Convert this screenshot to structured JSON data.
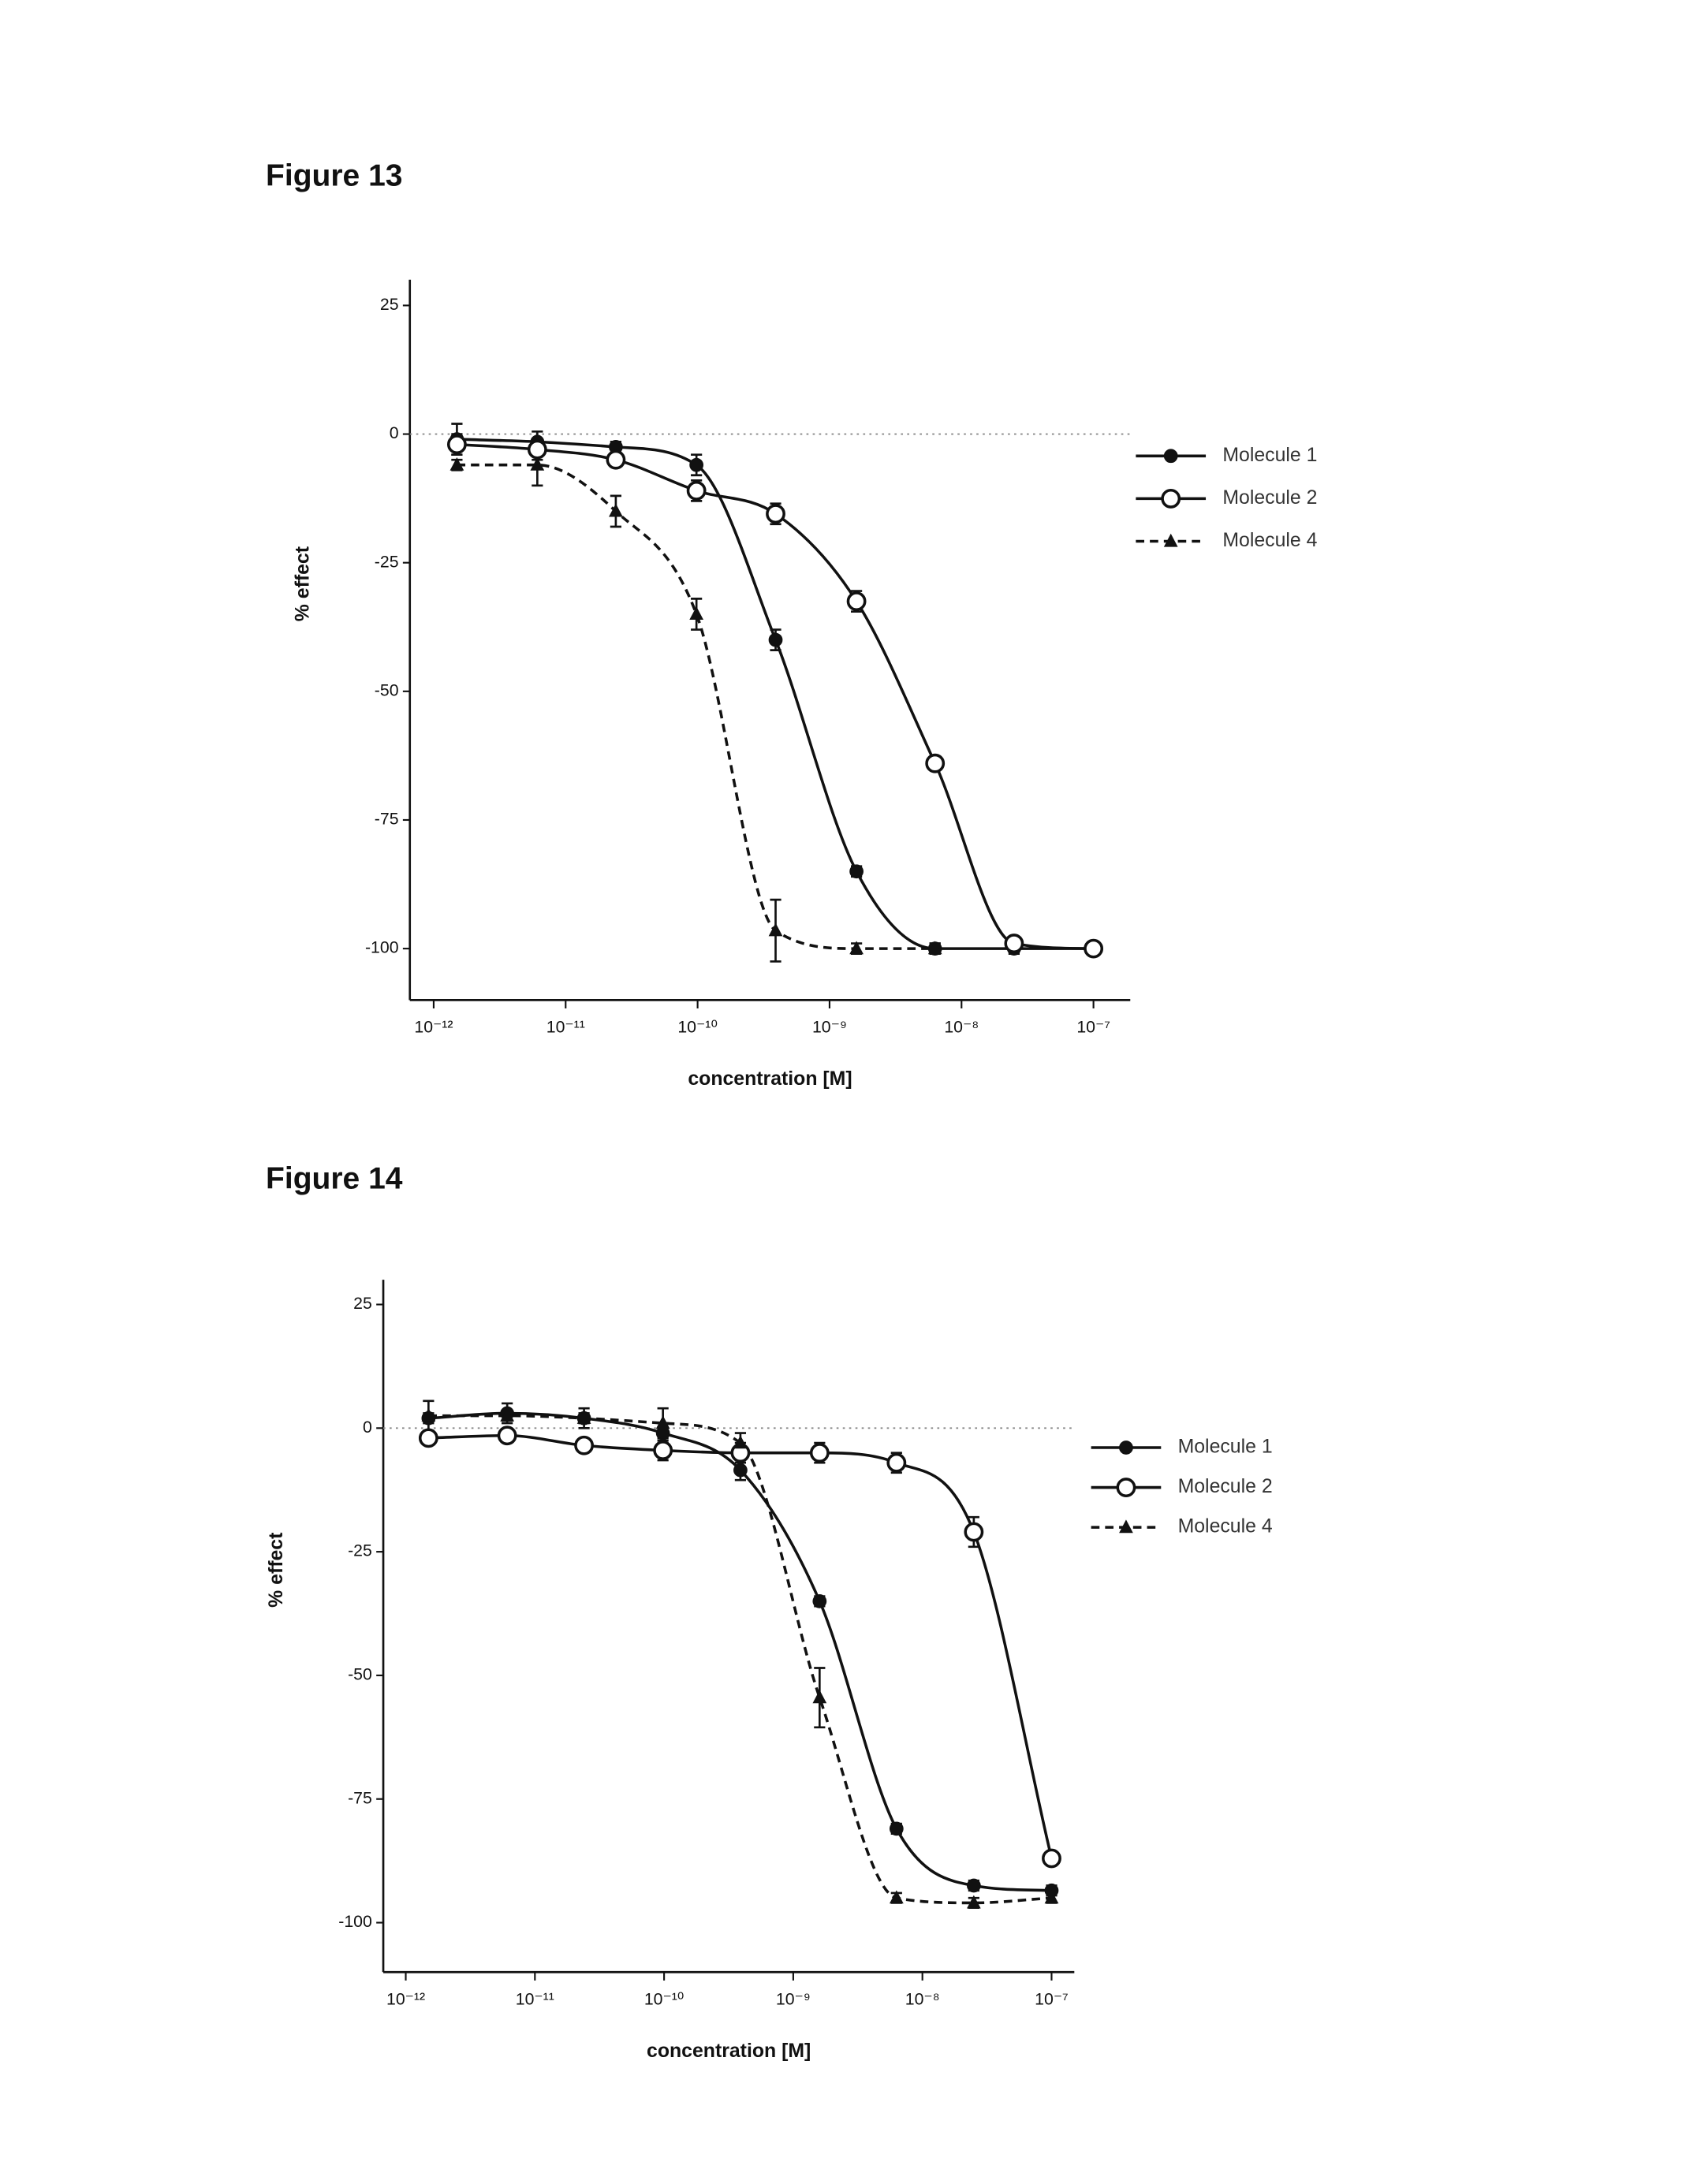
{
  "chart_data": [
    {
      "type": "scatter",
      "title": "Figure 13",
      "x_label": "concentration [M]",
      "y_label": "% effect",
      "x": [
        1.5e-12,
        6.1e-12,
        2.4e-11,
        9.8e-11,
        3.9e-10,
        1.6e-09,
        6.3e-09,
        2.5e-08,
        1e-07
      ],
      "xscale": "log",
      "xlim": [
        6.6e-13,
        1.9e-07
      ],
      "xticks": [
        {
          "value": 1e-12,
          "label": "10⁻¹²"
        },
        {
          "value": 1e-11,
          "label": "10⁻¹¹"
        },
        {
          "value": 1e-10,
          "label": "10⁻¹⁰"
        },
        {
          "value": 1e-09,
          "label": "10⁻⁹"
        },
        {
          "value": 1e-08,
          "label": "10⁻⁸"
        },
        {
          "value": 1e-07,
          "label": "10⁻⁷"
        }
      ],
      "ylim": [
        -110,
        30
      ],
      "yticks": [
        25,
        0,
        -25,
        -50,
        -75,
        -100
      ],
      "hline": 0,
      "legend": "right",
      "series": [
        {
          "name": "Molecule 1",
          "color": "#111111",
          "marker": "circle-filled",
          "line_style": "solid",
          "values": [
            -1,
            -1.5,
            -2.5,
            -6,
            -40,
            -85,
            -100,
            -100,
            -100
          ],
          "errors": [
            3,
            2,
            1,
            2,
            2,
            1,
            1,
            1,
            1
          ]
        },
        {
          "name": "Molecule 2",
          "color": "#111111",
          "marker": "circle-open",
          "line_style": "solid",
          "values": [
            -2,
            -3,
            -5,
            -11,
            -15.5,
            -32.5,
            -64,
            -99,
            -100
          ],
          "errors": [
            2,
            2,
            1,
            2,
            2,
            2,
            1,
            1,
            1
          ]
        },
        {
          "name": "Molecule 4",
          "color": "#111111",
          "marker": "triangle",
          "line_style": "dashed",
          "values": [
            -6,
            -6,
            -15,
            -35,
            -96.5,
            -100,
            -100,
            null,
            null
          ],
          "errors": [
            1,
            4,
            3,
            3,
            6,
            1,
            1,
            null,
            null
          ]
        }
      ]
    },
    {
      "type": "scatter",
      "title": "Figure 14",
      "x_label": "concentration [M]",
      "y_label": "% effect",
      "x": [
        1.5e-12,
        6.1e-12,
        2.4e-11,
        9.8e-11,
        3.9e-10,
        1.6e-09,
        6.3e-09,
        2.5e-08,
        1e-07
      ],
      "xscale": "log",
      "xlim": [
        6.7e-13,
        1.5e-07
      ],
      "xticks": [
        {
          "value": 1e-12,
          "label": "10⁻¹²"
        },
        {
          "value": 1e-11,
          "label": "10⁻¹¹"
        },
        {
          "value": 1e-10,
          "label": "10⁻¹⁰"
        },
        {
          "value": 1e-09,
          "label": "10⁻⁹"
        },
        {
          "value": 1e-08,
          "label": "10⁻⁸"
        },
        {
          "value": 1e-07,
          "label": "10⁻⁷"
        }
      ],
      "ylim": [
        -110,
        30
      ],
      "yticks": [
        25,
        0,
        -25,
        -50,
        -75,
        -100
      ],
      "hline": 0,
      "legend": "right",
      "series": [
        {
          "name": "Molecule 1",
          "color": "#111111",
          "marker": "circle-filled",
          "line_style": "solid",
          "values": [
            2,
            3,
            2,
            -1,
            -8.5,
            -35,
            -81,
            -92.5,
            -93.5
          ],
          "errors": [
            1,
            2,
            2,
            2,
            2,
            1,
            1,
            1,
            1
          ]
        },
        {
          "name": "Molecule 2",
          "color": "#111111",
          "marker": "circle-open",
          "line_style": "solid",
          "values": [
            -2,
            -1.5,
            -3.5,
            -4.5,
            -5,
            -5,
            -7,
            -21,
            -87
          ],
          "errors": [
            1,
            1,
            1,
            2,
            2,
            2,
            2,
            3,
            1
          ]
        },
        {
          "name": "Molecule 4",
          "color": "#111111",
          "marker": "triangle",
          "line_style": "dashed",
          "values": [
            2.5,
            2.5,
            2,
            1,
            -3,
            -54.5,
            -95,
            -96,
            -95
          ],
          "errors": [
            3,
            1,
            1,
            3,
            2,
            6,
            1,
            1,
            1
          ]
        }
      ]
    }
  ]
}
